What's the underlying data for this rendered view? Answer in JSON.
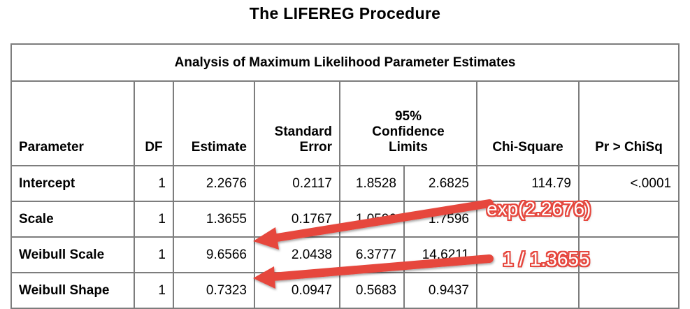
{
  "title": "The LIFEREG Procedure",
  "table": {
    "caption": "Analysis of Maximum Likelihood Parameter Estimates",
    "headers": {
      "parameter": "Parameter",
      "df": "DF",
      "estimate": "Estimate",
      "std_error_line1": "Standard",
      "std_error_line2": "Error",
      "ci_line1": "95%",
      "ci_line2": "Confidence",
      "ci_line3": "Limits",
      "chi_square": "Chi-Square",
      "pr_chisq": "Pr > ChiSq"
    },
    "rows": [
      {
        "parameter": "Intercept",
        "df": "1",
        "estimate": "2.2676",
        "std_error": "0.2117",
        "lower": "1.8528",
        "upper": "2.6825",
        "chi_square": "114.79",
        "pr_chisq": "<.0001"
      },
      {
        "parameter": "Scale",
        "df": "1",
        "estimate": "1.3655",
        "std_error": "0.1767",
        "lower": "1.0596",
        "upper": "1.7596",
        "chi_square": "",
        "pr_chisq": ""
      },
      {
        "parameter": "Weibull Scale",
        "df": "1",
        "estimate": "9.6566",
        "std_error": "2.0438",
        "lower": "6.3777",
        "upper": "14.6211",
        "chi_square": "",
        "pr_chisq": ""
      },
      {
        "parameter": "Weibull Shape",
        "df": "1",
        "estimate": "0.7323",
        "std_error": "0.0947",
        "lower": "0.5683",
        "upper": "0.9437",
        "chi_square": "",
        "pr_chisq": ""
      }
    ]
  },
  "annotations": {
    "scale_formula": "exp(2.2676)",
    "shape_formula": "1 / 1.3655",
    "arrow_color": "#e6463d"
  }
}
